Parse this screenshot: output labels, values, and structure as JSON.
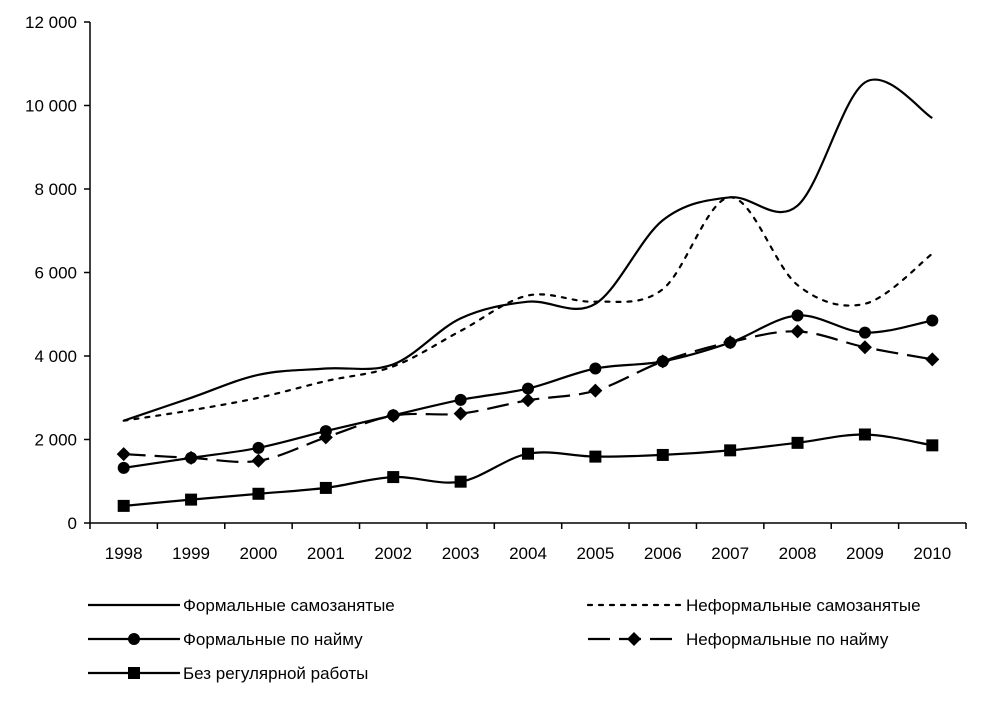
{
  "chart_data": {
    "type": "line",
    "title": "",
    "xlabel": "",
    "ylabel": "",
    "categories": [
      "1998",
      "1999",
      "2000",
      "2001",
      "2002",
      "2003",
      "2004",
      "2005",
      "2006",
      "2007",
      "2008",
      "2009",
      "2010"
    ],
    "ylim": [
      0,
      12000
    ],
    "yticks": [
      0,
      2000,
      4000,
      6000,
      8000,
      10000,
      12000
    ],
    "ytick_labels": [
      "0",
      "2 000",
      "4 000",
      "6 000",
      "8 000",
      "10 000",
      "12 000"
    ],
    "grid": false,
    "legend_position": "bottom",
    "series": [
      {
        "name": "Формальные самозанятые",
        "style": "solid",
        "marker": "none",
        "values": [
          2450,
          3000,
          3550,
          3700,
          3800,
          4900,
          5300,
          5250,
          7250,
          7800,
          7600,
          10550,
          9700
        ]
      },
      {
        "name": "Неформальные самозанятые",
        "style": "dotted",
        "marker": "none",
        "values": [
          2450,
          2700,
          3000,
          3400,
          3750,
          4600,
          5450,
          5300,
          5600,
          7800,
          5700,
          5250,
          6450
        ]
      },
      {
        "name": "Формальные по найму",
        "style": "solid",
        "marker": "circle",
        "values": [
          1320,
          1560,
          1800,
          2200,
          2580,
          2950,
          3220,
          3700,
          3870,
          4320,
          4970,
          4560,
          4850
        ]
      },
      {
        "name": "Неформальные по найму",
        "style": "dashed",
        "marker": "diamond",
        "values": [
          1650,
          1560,
          1490,
          2050,
          2570,
          2620,
          2940,
          3170,
          3870,
          4330,
          4590,
          4210,
          3920
        ]
      },
      {
        "name": "Без регулярной работы",
        "style": "solid",
        "marker": "square",
        "values": [
          410,
          560,
          700,
          840,
          1100,
          990,
          1660,
          1590,
          1630,
          1740,
          1920,
          2120,
          1860
        ]
      }
    ]
  }
}
